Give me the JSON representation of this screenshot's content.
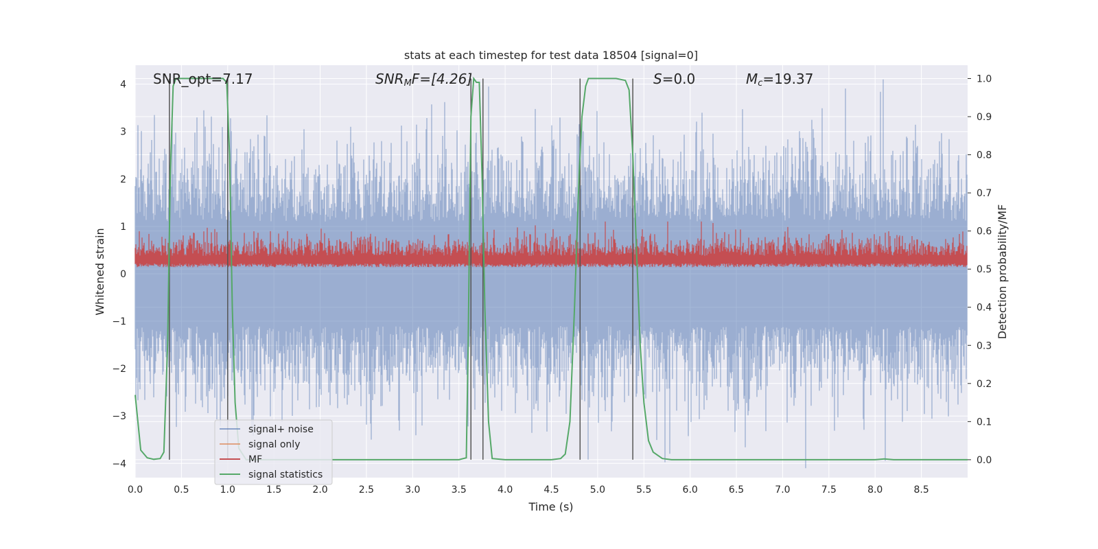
{
  "chart_data": {
    "type": "line",
    "title": "stats at each timestep for test data 18504 [signal=0]",
    "xlabel": "Time (s)",
    "ylabel": "Whitened strain",
    "y2label": "Detection probability/MF",
    "xlim": [
      0.0,
      9.0
    ],
    "ylim": [
      -4.3,
      4.4
    ],
    "y2lim": [
      -0.047,
      1.035
    ],
    "xticks": [
      "0.0",
      "0.5",
      "1.0",
      "1.5",
      "2.0",
      "2.5",
      "3.0",
      "3.5",
      "4.0",
      "4.5",
      "5.0",
      "5.5",
      "6.0",
      "6.5",
      "7.0",
      "7.5",
      "8.0",
      "8.5"
    ],
    "yticks": [
      "4",
      "3",
      "2",
      "1",
      "0",
      "−1",
      "−2",
      "−3",
      "−4"
    ],
    "y2ticks": [
      "1.0",
      "0.9",
      "0.8",
      "0.7",
      "0.6",
      "0.5",
      "0.4",
      "0.3",
      "0.2",
      "0.1",
      "0.0"
    ],
    "grid": true,
    "legend_position": "lower-left",
    "annotations": {
      "snr_opt": "SNR_opt=7.17",
      "snr_mf_label": "SNR",
      "snr_mf_sub": "M",
      "snr_mf_rest": "F=[4.26]",
      "s_label": "S",
      "s_rest": "=0.0",
      "mc_label": "M",
      "mc_sub": "c",
      "mc_rest": "=19.37"
    },
    "series": [
      {
        "name": "signal+ noise",
        "color": "#4c72b0",
        "description": "whitened noise, roughly spanning -2.5 to 2.5 with spikes to ±4"
      },
      {
        "name": "signal only",
        "color": "#dd8452",
        "values": []
      },
      {
        "name": "MF",
        "color": "#c44e52",
        "y_axis": "right",
        "description": "matched-filter output, roughly 0.5 to 0.62"
      },
      {
        "name": "signal statistics",
        "color": "#55a868",
        "y_axis": "right",
        "x": [
          0.0,
          0.06,
          0.13,
          0.2,
          0.27,
          0.31,
          0.35,
          0.38,
          0.41,
          0.44,
          0.47,
          0.55,
          0.7,
          0.85,
          0.95,
          0.99,
          1.02,
          1.05,
          1.08,
          1.12,
          1.2,
          2.0,
          3.0,
          3.5,
          3.58,
          3.6,
          3.63,
          3.66,
          3.69,
          3.72,
          3.75,
          3.78,
          3.82,
          3.86,
          4.0,
          4.5,
          4.6,
          4.65,
          4.7,
          4.75,
          4.8,
          4.83,
          4.87,
          4.9,
          5.0,
          5.2,
          5.3,
          5.34,
          5.38,
          5.42,
          5.46,
          5.5,
          5.55,
          5.6,
          5.7,
          5.8,
          6.0,
          7.0,
          7.5,
          8.0,
          8.1,
          8.2,
          8.5,
          9.0
        ],
        "values": [
          0.17,
          0.025,
          0.005,
          0.001,
          0.003,
          0.02,
          0.3,
          0.75,
          0.98,
          1.0,
          1.0,
          1.0,
          1.0,
          1.0,
          1.0,
          0.99,
          0.8,
          0.4,
          0.15,
          0.03,
          0.0,
          0.0,
          0.0,
          0.0,
          0.005,
          0.3,
          0.9,
          1.0,
          0.99,
          0.99,
          0.75,
          0.4,
          0.1,
          0.003,
          0.0,
          0.0,
          0.003,
          0.015,
          0.1,
          0.4,
          0.75,
          0.9,
          0.98,
          1.0,
          1.0,
          1.0,
          0.995,
          0.97,
          0.8,
          0.55,
          0.3,
          0.15,
          0.05,
          0.02,
          0.003,
          0.0,
          0.0,
          0.0,
          0.0,
          0.0,
          0.002,
          0.0,
          0.0,
          0.0
        ]
      }
    ],
    "vlines": [
      0.37,
      1.0,
      3.63,
      3.76,
      4.81,
      5.38
    ]
  }
}
